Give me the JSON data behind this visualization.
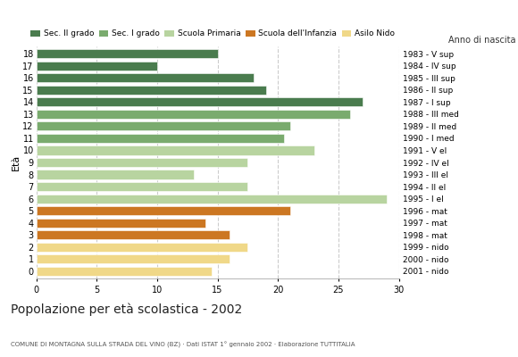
{
  "ages": [
    18,
    17,
    16,
    15,
    14,
    13,
    12,
    11,
    10,
    9,
    8,
    7,
    6,
    5,
    4,
    3,
    2,
    1,
    0
  ],
  "values": [
    15,
    10,
    18,
    19,
    27,
    26,
    21,
    20.5,
    23,
    17.5,
    13,
    17.5,
    29,
    21,
    14,
    16,
    17.5,
    16,
    14.5
  ],
  "anno_nascita": [
    "1983 - V sup",
    "1984 - IV sup",
    "1985 - III sup",
    "1986 - II sup",
    "1987 - I sup",
    "1988 - III med",
    "1989 - II med",
    "1990 - I med",
    "1991 - V el",
    "1992 - IV el",
    "1993 - III el",
    "1994 - II el",
    "1995 - I el",
    "1996 - mat",
    "1997 - mat",
    "1998 - mat",
    "1999 - nido",
    "2000 - nido",
    "2001 - nido"
  ],
  "colors": [
    "#4a7c4e",
    "#4a7c4e",
    "#4a7c4e",
    "#4a7c4e",
    "#4a7c4e",
    "#7aab6e",
    "#7aab6e",
    "#7aab6e",
    "#b8d4a0",
    "#b8d4a0",
    "#b8d4a0",
    "#b8d4a0",
    "#b8d4a0",
    "#cc7722",
    "#cc7722",
    "#cc7722",
    "#f0d888",
    "#f0d888",
    "#f0d888"
  ],
  "legend_labels": [
    "Sec. II grado",
    "Sec. I grado",
    "Scuola Primaria",
    "Scuola dell'Infanzia",
    "Asilo Nido"
  ],
  "legend_colors": [
    "#4a7c4e",
    "#7aab6e",
    "#b8d4a0",
    "#cc7722",
    "#f0d888"
  ],
  "title": "Popolazione per età scolastica - 2002",
  "subtitle": "COMUNE DI MONTAGNA SULLA STRADA DEL VINO (BZ) · Dati ISTAT 1° gennaio 2002 · Elaborazione TUTTITALIA",
  "ylabel": "Età",
  "ylabel2": "Anno di nascita",
  "xlim": [
    0,
    30
  ],
  "xticks": [
    0,
    5,
    10,
    15,
    20,
    25,
    30
  ],
  "background_color": "#ffffff",
  "bar_height": 0.75
}
